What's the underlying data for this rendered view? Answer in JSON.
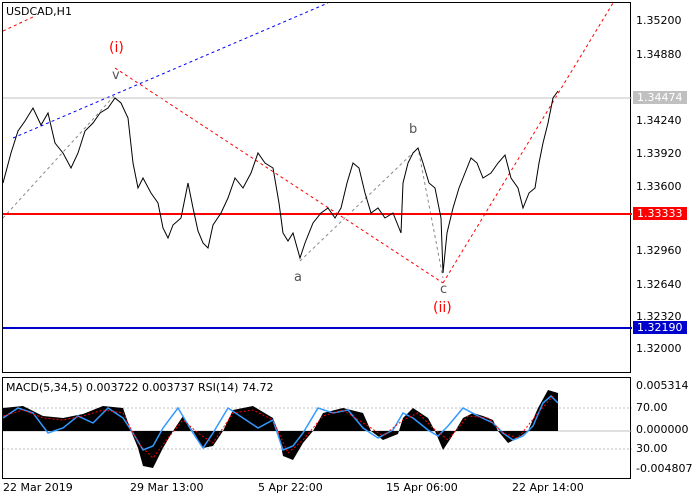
{
  "chart": {
    "title": "USDCAD,H1",
    "price_axis": [
      "1.35200",
      "1.34880",
      "1.34240",
      "1.33920",
      "1.33600",
      "1.32960",
      "1.32640",
      "1.32320",
      "1.32000"
    ],
    "time_axis": [
      "22 Mar 2019",
      "29 Mar 13:00",
      "5 Apr 22:00",
      "15 Apr 06:00",
      "22 Apr 14:00"
    ],
    "current_price": "1.34474",
    "support_level": "1.33333",
    "target_level": "1.32190",
    "wave_labels": {
      "i": "(i)",
      "ii": "(ii)",
      "v": "v",
      "a": "a",
      "b": "b",
      "c": "c"
    },
    "colors": {
      "support_line": "#ff0000",
      "target_line": "#0000cc",
      "wave_primary": "#ff0000",
      "wave_secondary": "#555555",
      "channel": "#0000ff",
      "current_tag": "#c0c0c0"
    }
  },
  "indicator": {
    "title": "MACD(5,34,5) 0.003722 0.003737 RSI(14) 74.72",
    "axis": [
      "0.005314",
      "70.00",
      "0.000000",
      "30.00",
      "-0.004807"
    ]
  }
}
